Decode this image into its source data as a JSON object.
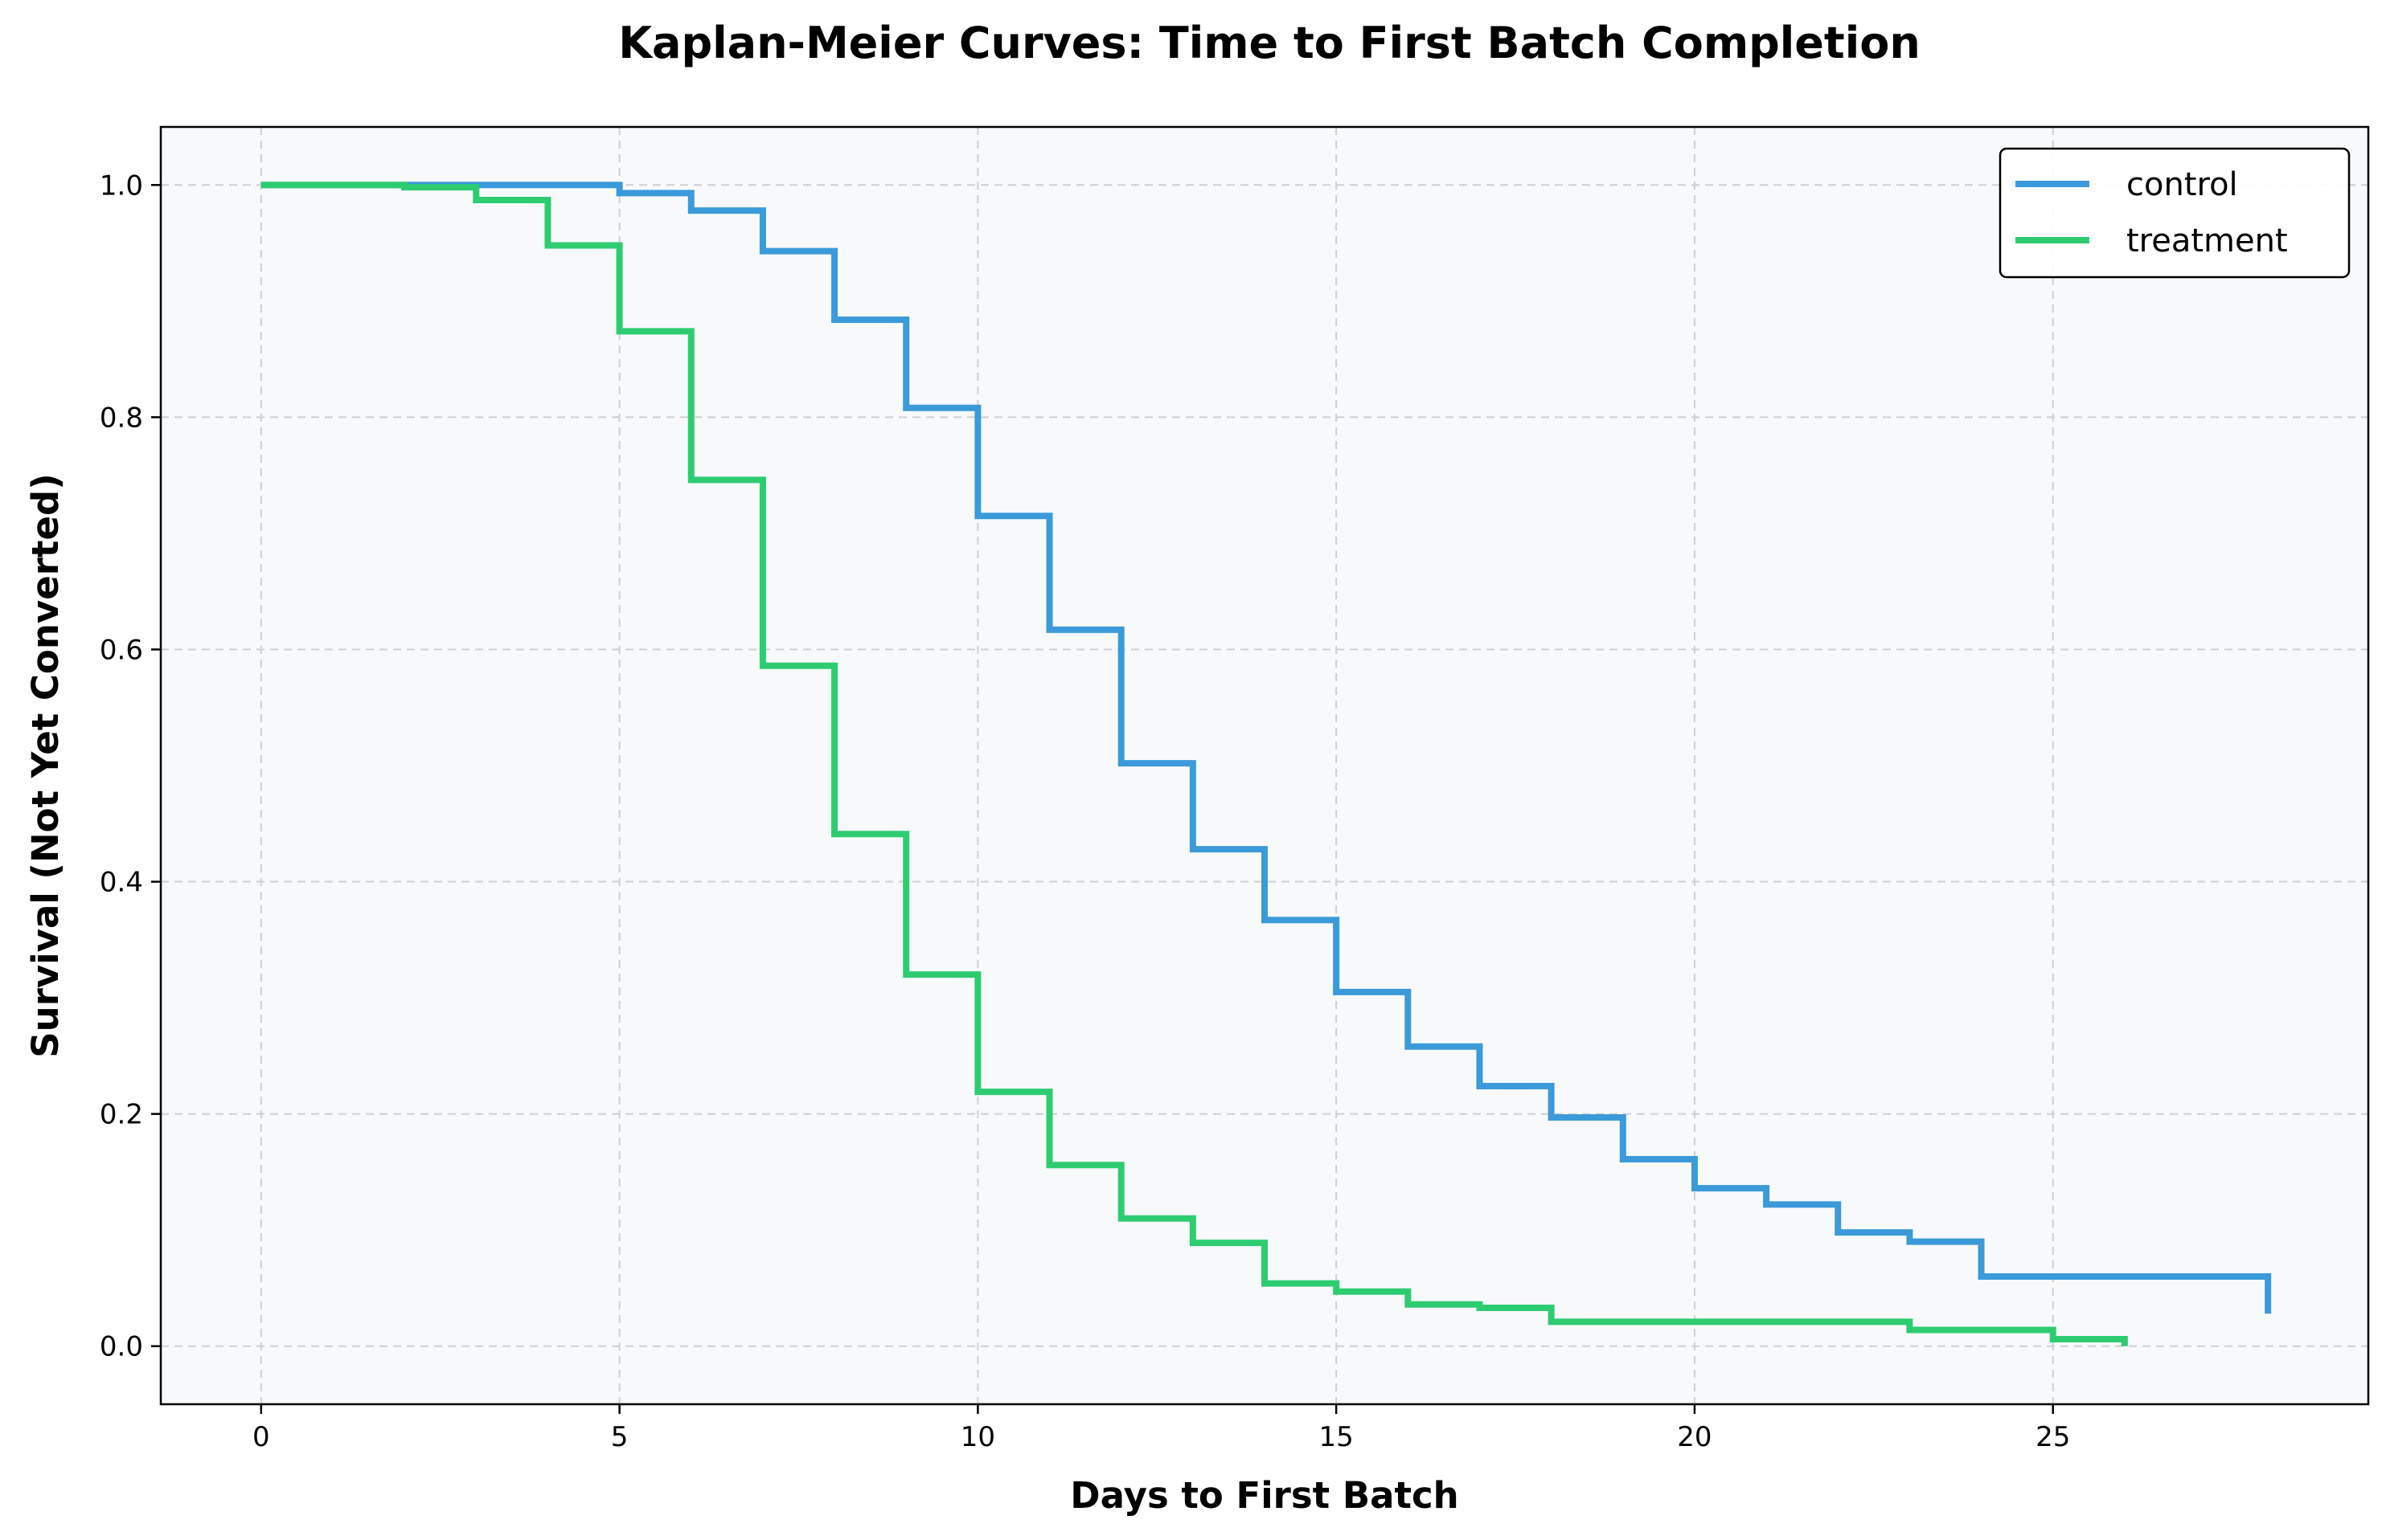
{
  "colors": {
    "background": "#ffffff",
    "plot_background": "#f7f9fb",
    "control": "#3b9ad9",
    "treatment": "#2ecc71"
  },
  "chart_data": {
    "type": "line",
    "step": true,
    "title": "Kaplan-Meier Curves: Time to First Batch Completion",
    "xlabel": "Days to First Batch",
    "ylabel": "Survival (Not Yet Converted)",
    "xlim": [
      -1.4,
      29.4
    ],
    "ylim": [
      -0.05,
      1.05
    ],
    "xticks": [
      0,
      5,
      10,
      15,
      20,
      25
    ],
    "xtick_labels": [
      "0",
      "5",
      "10",
      "15",
      "20",
      "25"
    ],
    "yticks": [
      0.0,
      0.2,
      0.4,
      0.6,
      0.8,
      1.0
    ],
    "ytick_labels": [
      "0.0",
      "0.2",
      "0.4",
      "0.6",
      "0.8",
      "1.0"
    ],
    "grid": true,
    "legend_position": "top-right",
    "series": [
      {
        "name": "control",
        "color": "#3b9ad9",
        "x": [
          0,
          4,
          5,
          6,
          7,
          8,
          9,
          10,
          11,
          12,
          13,
          14,
          15,
          16,
          17,
          18,
          19,
          20,
          21,
          22,
          23,
          24,
          28
        ],
        "y": [
          1.0,
          1.0,
          0.993,
          0.978,
          0.943,
          0.884,
          0.808,
          0.715,
          0.617,
          0.502,
          0.428,
          0.367,
          0.305,
          0.258,
          0.224,
          0.197,
          0.161,
          0.136,
          0.122,
          0.098,
          0.09,
          0.06,
          0.028
        ]
      },
      {
        "name": "treatment",
        "color": "#2ecc71",
        "x": [
          0,
          2,
          3,
          4,
          5,
          6,
          7,
          8,
          9,
          10,
          11,
          12,
          13,
          14,
          15,
          16,
          17,
          18,
          23,
          25,
          26
        ],
        "y": [
          1.0,
          0.998,
          0.987,
          0.948,
          0.874,
          0.746,
          0.586,
          0.441,
          0.32,
          0.219,
          0.156,
          0.11,
          0.089,
          0.054,
          0.047,
          0.036,
          0.033,
          0.021,
          0.014,
          0.006,
          0.0
        ]
      }
    ]
  }
}
